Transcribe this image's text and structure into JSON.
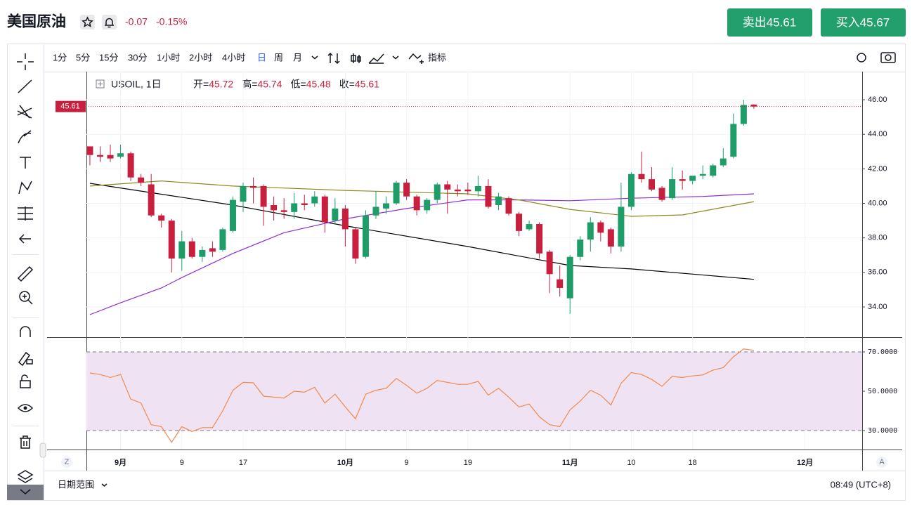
{
  "header": {
    "title": "美国原油",
    "change": "-0.07",
    "change_pct": "-0.15%",
    "sell": "卖出45.61",
    "buy": "买入45.67"
  },
  "toolbar": {
    "intervals": [
      "1分",
      "5分",
      "15分",
      "30分",
      "1小时",
      "2小时",
      "4小时",
      "日",
      "周",
      "月"
    ],
    "indicators": "指标"
  },
  "legend": {
    "symbol": "USOIL, 1日",
    "items": [
      {
        "label": "开=",
        "value": "45.72"
      },
      {
        "label": "高=",
        "value": "45.74"
      },
      {
        "label": "低=",
        "value": "45.48"
      },
      {
        "label": "收=",
        "value": "45.61"
      }
    ]
  },
  "footer": {
    "date_range": "日期范围",
    "time": "08:49 (UTC+8)",
    "left_button": "Z",
    "right_button": "A"
  },
  "chart_data": [
    {
      "type": "candlestick",
      "up_color": "#1e9d68",
      "down_color": "#c81f3e",
      "grid": true,
      "open": [
        43.3,
        42.8,
        42.8,
        42.7,
        42.9,
        41.5,
        41.1,
        39.3,
        39.0,
        36.8,
        37.8,
        36.9,
        37.4,
        37.3,
        38.4,
        40.1,
        41.0,
        41.0,
        39.9,
        39.6,
        39.5,
        40.0,
        40.0,
        40.4,
        39.0,
        39.7,
        38.5,
        36.9,
        39.3,
        39.7,
        40.0,
        41.2,
        40.4,
        39.6,
        40.2,
        41.1,
        40.8,
        40.8,
        40.7,
        41.0,
        39.9,
        40.3,
        39.4,
        38.5,
        38.8,
        37.2,
        35.6,
        34.5,
        36.9,
        37.9,
        38.9,
        38.5,
        37.5,
        39.8,
        41.7,
        41.4,
        40.9,
        40.3,
        41.4,
        41.3,
        41.6,
        41.6,
        42.2,
        42.7,
        44.6,
        45.72
      ],
      "high": [
        43.3,
        43.3,
        43.4,
        43.4,
        43.0,
        41.7,
        41.7,
        39.4,
        39.1,
        38.4,
        38.0,
        37.5,
        37.8,
        38.6,
        40.4,
        41.2,
        41.5,
        41.1,
        40.4,
        40.3,
        40.6,
        40.5,
        40.7,
        40.5,
        40.3,
        39.9,
        38.6,
        39.6,
        40.7,
        40.4,
        41.3,
        41.4,
        40.5,
        40.3,
        41.2,
        41.3,
        41.1,
        41.2,
        41.6,
        41.4,
        40.6,
        40.4,
        39.5,
        39.0,
        38.9,
        37.3,
        36.4,
        37.0,
        38.1,
        39.2,
        39.0,
        38.6,
        41.2,
        41.8,
        43.0,
        42.1,
        41.0,
        42.1,
        41.9,
        41.6,
        42.2,
        42.3,
        43.2,
        45.2,
        46.0,
        45.74
      ],
      "low": [
        42.2,
        42.4,
        42.4,
        42.6,
        41.3,
        41.0,
        39.2,
        38.6,
        36.0,
        36.1,
        36.8,
        36.6,
        36.9,
        37.2,
        38.3,
        39.5,
        40.0,
        38.7,
        39.0,
        39.1,
        39.1,
        39.6,
        39.8,
        38.3,
        38.8,
        37.5,
        36.5,
        36.8,
        39.1,
        39.4,
        39.9,
        40.2,
        39.3,
        39.4,
        40.0,
        39.4,
        40.4,
        40.5,
        40.4,
        39.7,
        39.6,
        39.3,
        38.1,
        38.4,
        36.8,
        34.8,
        34.6,
        33.6,
        36.7,
        37.2,
        37.8,
        37.1,
        37.2,
        39.6,
        41.2,
        40.7,
        40.1,
        40.2,
        40.8,
        41.1,
        41.4,
        41.5,
        42.1,
        42.6,
        44.5,
        45.48
      ],
      "close": [
        42.8,
        42.7,
        42.6,
        42.9,
        41.5,
        41.2,
        39.3,
        39.0,
        36.8,
        37.8,
        36.9,
        37.3,
        37.2,
        38.5,
        40.2,
        41.0,
        40.9,
        39.8,
        39.6,
        39.5,
        40.0,
        39.9,
        40.4,
        38.9,
        39.7,
        38.5,
        36.8,
        39.3,
        39.8,
        40.0,
        41.2,
        40.4,
        39.6,
        40.2,
        41.1,
        40.8,
        40.7,
        40.7,
        41.0,
        39.8,
        40.4,
        39.4,
        38.4,
        38.8,
        37.1,
        35.9,
        35.1,
        36.9,
        37.9,
        38.9,
        38.3,
        37.5,
        39.8,
        41.7,
        41.4,
        40.8,
        40.2,
        41.4,
        41.3,
        41.6,
        41.7,
        42.2,
        42.6,
        44.6,
        45.7,
        45.61
      ],
      "series": [
        {
          "color": "#000000",
          "x": [
            0,
            14,
            25,
            37,
            47,
            53,
            65
          ],
          "values": [
            41.16,
            39.9,
            38.7,
            37.5,
            36.4,
            36.2,
            35.6
          ]
        },
        {
          "color": "#8e2bd6",
          "x": [
            0,
            3,
            7,
            9,
            14,
            19,
            25,
            31,
            37,
            42,
            47,
            53,
            60,
            65
          ],
          "values": [
            33.55,
            34.24,
            35.1,
            35.7,
            37.1,
            38.3,
            39.1,
            39.7,
            40.2,
            40.2,
            40.15,
            40.3,
            40.4,
            40.55
          ]
        },
        {
          "color": "#8a8a1e",
          "x": [
            0,
            7,
            14,
            25,
            37,
            42,
            47,
            53,
            58,
            65
          ],
          "values": [
            41.0,
            41.3,
            41.0,
            40.75,
            40.55,
            40.2,
            39.65,
            39.25,
            39.33,
            40.1
          ]
        }
      ],
      "last_price": {
        "value": 45.61,
        "label": "45.61"
      },
      "xlim": [
        -0.34,
        75.6
      ],
      "xticks": [
        {
          "value": 3,
          "label": "9月"
        },
        {
          "value": 9,
          "label": "9"
        },
        {
          "value": 15,
          "label": "17"
        },
        {
          "value": 25,
          "label": "10月"
        },
        {
          "value": 31,
          "label": "9"
        },
        {
          "value": 37,
          "label": "19"
        },
        {
          "value": 47,
          "label": "11月"
        },
        {
          "value": 53,
          "label": "10"
        },
        {
          "value": 59,
          "label": "18"
        },
        {
          "value": 70,
          "label": "12月"
        }
      ],
      "ylim": [
        32.25,
        47.63
      ],
      "yticks": [
        {
          "value": 34,
          "label": "34.00"
        },
        {
          "value": 36,
          "label": "36.00"
        },
        {
          "value": 38,
          "label": "38.00"
        },
        {
          "value": 40,
          "label": "40.00"
        },
        {
          "value": 42,
          "label": "42.00"
        },
        {
          "value": 44,
          "label": "44.00"
        },
        {
          "value": 46,
          "label": "46.00"
        }
      ]
    },
    {
      "type": "line",
      "color": "#f0894e",
      "band_color": "#efe2f3",
      "values": [
        59.3,
        58.5,
        57,
        58.5,
        46,
        44,
        33,
        32,
        24,
        32,
        29.5,
        31.5,
        31.5,
        40,
        50.5,
        54.5,
        54.3,
        47.5,
        47,
        46.5,
        50,
        49.5,
        52,
        44,
        48.5,
        42,
        36,
        48.5,
        50.5,
        51.5,
        56.5,
        53,
        49,
        51.5,
        55.5,
        54.5,
        53.5,
        53.5,
        55,
        48,
        51.5,
        47,
        42,
        43.5,
        37,
        33,
        32,
        40.5,
        45,
        50.5,
        48,
        43,
        54,
        59.5,
        58.5,
        56,
        52.5,
        57.5,
        57,
        57.8,
        58.3,
        60.7,
        62,
        67.5,
        71.5,
        70.8
      ],
      "xlim": [
        -0.34,
        75.6
      ],
      "ylim": [
        20.36,
        77.5
      ],
      "yticks": [
        {
          "value": 30,
          "label": "30.0000"
        },
        {
          "value": 50,
          "label": "50.0000"
        },
        {
          "value": 70,
          "label": "70.0000"
        }
      ]
    }
  ]
}
